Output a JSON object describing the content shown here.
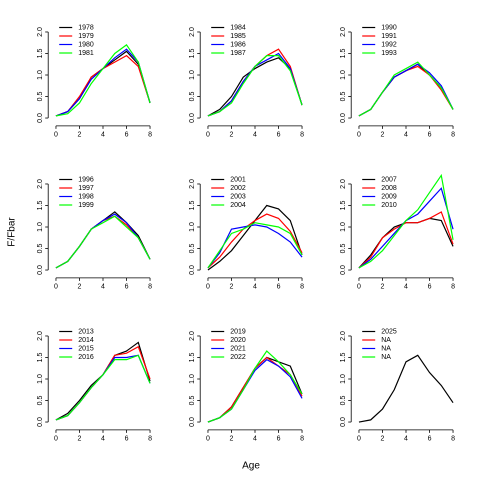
{
  "xlabel": "Age",
  "ylabel": "F/Fbar",
  "chart_data": [
    {
      "type": "line",
      "x": [
        0,
        1,
        2,
        3,
        4,
        5,
        6,
        7,
        8
      ],
      "xlim": [
        -0.32,
        8.32
      ],
      "xticks": [
        0,
        2,
        4,
        6,
        8
      ],
      "ylim": [
        -0.09,
        2.29
      ],
      "yticks": [
        {
          "value": 0,
          "label": "0.0"
        },
        0.5,
        {
          "value": 1,
          "label": "1.0"
        },
        1.5,
        {
          "value": 2,
          "label": "2.0"
        }
      ],
      "legend": "top-left",
      "series": [
        {
          "name": "1978",
          "color": "#000000",
          "values": [
            0.05,
            0.15,
            0.45,
            0.95,
            1.15,
            1.35,
            1.55,
            1.25,
            0.35
          ]
        },
        {
          "name": "1979",
          "color": "#ff0000",
          "values": [
            0.05,
            0.15,
            0.5,
            0.95,
            1.15,
            1.3,
            1.45,
            1.2,
            0.35
          ]
        },
        {
          "name": "1980",
          "color": "#0000ff",
          "values": [
            0.05,
            0.15,
            0.45,
            0.9,
            1.15,
            1.4,
            1.6,
            1.3,
            0.35
          ]
        },
        {
          "name": "1981",
          "color": "#00ff00",
          "values": [
            0.05,
            0.1,
            0.35,
            0.8,
            1.15,
            1.5,
            1.7,
            1.3,
            0.35
          ]
        }
      ]
    },
    {
      "type": "line",
      "x": [
        0,
        1,
        2,
        3,
        4,
        5,
        6,
        7,
        8
      ],
      "xlim": [
        -0.32,
        8.32
      ],
      "xticks": [
        0,
        2,
        4,
        6,
        8
      ],
      "ylim": [
        -0.09,
        2.29
      ],
      "yticks": [
        {
          "value": 0,
          "label": "0.0"
        },
        0.5,
        {
          "value": 1,
          "label": "1.0"
        },
        1.5,
        {
          "value": 2,
          "label": "2.0"
        }
      ],
      "legend": "top-left",
      "series": [
        {
          "name": "1984",
          "color": "#000000",
          "values": [
            0.05,
            0.2,
            0.5,
            0.95,
            1.15,
            1.3,
            1.4,
            1.15,
            0.3
          ]
        },
        {
          "name": "1985",
          "color": "#ff0000",
          "values": [
            0.05,
            0.15,
            0.4,
            0.85,
            1.2,
            1.45,
            1.6,
            1.2,
            0.3
          ]
        },
        {
          "name": "1986",
          "color": "#0000ff",
          "values": [
            0.05,
            0.15,
            0.4,
            0.85,
            1.2,
            1.35,
            1.5,
            1.15,
            0.3
          ]
        },
        {
          "name": "1987",
          "color": "#00ff00",
          "values": [
            0.05,
            0.15,
            0.35,
            0.8,
            1.2,
            1.45,
            1.45,
            1.1,
            0.3
          ]
        }
      ]
    },
    {
      "type": "line",
      "x": [
        0,
        1,
        2,
        3,
        4,
        5,
        6,
        7,
        8
      ],
      "xlim": [
        -0.32,
        8.32
      ],
      "xticks": [
        0,
        2,
        4,
        6,
        8
      ],
      "ylim": [
        -0.09,
        2.29
      ],
      "yticks": [
        {
          "value": 0,
          "label": "0.0"
        },
        0.5,
        {
          "value": 1,
          "label": "1.0"
        },
        1.5,
        {
          "value": 2,
          "label": "2.0"
        }
      ],
      "legend": "top-left",
      "series": [
        {
          "name": "1990",
          "color": "#000000",
          "values": [
            0.05,
            0.2,
            0.6,
            0.95,
            1.1,
            1.25,
            1.0,
            0.7,
            0.2
          ]
        },
        {
          "name": "1991",
          "color": "#ff0000",
          "values": [
            0.05,
            0.2,
            0.6,
            0.95,
            1.1,
            1.2,
            1.0,
            0.65,
            0.2
          ]
        },
        {
          "name": "1992",
          "color": "#0000ff",
          "values": [
            0.05,
            0.2,
            0.6,
            0.95,
            1.1,
            1.25,
            1.05,
            0.75,
            0.2
          ]
        },
        {
          "name": "1993",
          "color": "#00ff00",
          "values": [
            0.05,
            0.2,
            0.6,
            1.0,
            1.15,
            1.3,
            1.0,
            0.7,
            0.2
          ]
        }
      ]
    },
    {
      "type": "line",
      "x": [
        0,
        1,
        2,
        3,
        4,
        5,
        6,
        7,
        8
      ],
      "xlim": [
        -0.32,
        8.32
      ],
      "xticks": [
        0,
        2,
        4,
        6,
        8
      ],
      "ylim": [
        -0.09,
        2.29
      ],
      "yticks": [
        {
          "value": 0,
          "label": "0.0"
        },
        0.5,
        {
          "value": 1,
          "label": "1.0"
        },
        1.5,
        {
          "value": 2,
          "label": "2.0"
        }
      ],
      "legend": "top-left",
      "series": [
        {
          "name": "1996",
          "color": "#000000",
          "values": [
            0.05,
            0.2,
            0.55,
            0.95,
            1.15,
            1.35,
            1.1,
            0.8,
            0.25
          ]
        },
        {
          "name": "1997",
          "color": "#ff0000",
          "values": [
            0.05,
            0.2,
            0.55,
            0.95,
            1.15,
            1.25,
            1.05,
            0.75,
            0.25
          ]
        },
        {
          "name": "1998",
          "color": "#0000ff",
          "values": [
            0.05,
            0.2,
            0.55,
            0.95,
            1.15,
            1.3,
            1.1,
            0.75,
            0.25
          ]
        },
        {
          "name": "1999",
          "color": "#00ff00",
          "values": [
            0.05,
            0.2,
            0.55,
            0.95,
            1.1,
            1.25,
            1.0,
            0.75,
            0.25
          ]
        }
      ]
    },
    {
      "type": "line",
      "x": [
        0,
        1,
        2,
        3,
        4,
        5,
        6,
        7,
        8
      ],
      "xlim": [
        -0.32,
        8.32
      ],
      "xticks": [
        0,
        2,
        4,
        6,
        8
      ],
      "ylim": [
        -0.09,
        2.29
      ],
      "yticks": [
        {
          "value": 0,
          "label": "0.0"
        },
        0.5,
        {
          "value": 1,
          "label": "1.0"
        },
        1.5,
        {
          "value": 2,
          "label": "2.0"
        }
      ],
      "legend": "top-left",
      "series": [
        {
          "name": "2001",
          "color": "#000000",
          "values": [
            0.0,
            0.2,
            0.45,
            0.8,
            1.15,
            1.5,
            1.42,
            1.15,
            0.35
          ]
        },
        {
          "name": "2002",
          "color": "#ff0000",
          "values": [
            0.05,
            0.3,
            0.65,
            0.95,
            1.15,
            1.3,
            1.2,
            0.9,
            0.4
          ]
        },
        {
          "name": "2003",
          "color": "#0000ff",
          "values": [
            0.05,
            0.4,
            0.95,
            1.0,
            1.05,
            1.0,
            0.85,
            0.65,
            0.3
          ]
        },
        {
          "name": "2004",
          "color": "#00ff00",
          "values": [
            0.05,
            0.45,
            0.85,
            0.95,
            1.1,
            1.05,
            1.0,
            0.85,
            0.35
          ]
        }
      ]
    },
    {
      "type": "line",
      "x": [
        0,
        1,
        2,
        3,
        4,
        5,
        6,
        7,
        8
      ],
      "xlim": [
        -0.32,
        8.32
      ],
      "xticks": [
        0,
        2,
        4,
        6,
        8
      ],
      "ylim": [
        -0.09,
        2.29
      ],
      "yticks": [
        {
          "value": 0,
          "label": "0.0"
        },
        0.5,
        {
          "value": 1,
          "label": "1.0"
        },
        1.5,
        {
          "value": 2,
          "label": "2.0"
        }
      ],
      "legend": "top-left",
      "series": [
        {
          "name": "2007",
          "color": "#000000",
          "values": [
            0.05,
            0.35,
            0.75,
            1.0,
            1.1,
            1.1,
            1.2,
            1.15,
            0.55
          ]
        },
        {
          "name": "2008",
          "color": "#ff0000",
          "values": [
            0.05,
            0.3,
            0.75,
            0.95,
            1.1,
            1.1,
            1.2,
            1.35,
            0.6
          ]
        },
        {
          "name": "2009",
          "color": "#0000ff",
          "values": [
            0.05,
            0.25,
            0.55,
            0.85,
            1.15,
            1.3,
            1.6,
            1.9,
            0.95
          ]
        },
        {
          "name": "2010",
          "color": "#00ff00",
          "values": [
            0.05,
            0.2,
            0.45,
            0.8,
            1.15,
            1.4,
            1.8,
            2.2,
            0.7
          ]
        }
      ]
    },
    {
      "type": "line",
      "x": [
        0,
        1,
        2,
        3,
        4,
        5,
        6,
        7,
        8
      ],
      "xlim": [
        -0.32,
        8.32
      ],
      "xticks": [
        0,
        2,
        4,
        6,
        8
      ],
      "ylim": [
        -0.09,
        2.29
      ],
      "yticks": [
        {
          "value": 0,
          "label": "0.0"
        },
        0.5,
        {
          "value": 1,
          "label": "1.0"
        },
        1.5,
        {
          "value": 2,
          "label": "2.0"
        }
      ],
      "legend": "top-left",
      "series": [
        {
          "name": "2013",
          "color": "#000000",
          "values": [
            0.05,
            0.2,
            0.5,
            0.85,
            1.1,
            1.55,
            1.65,
            1.85,
            0.95
          ]
        },
        {
          "name": "2014",
          "color": "#ff0000",
          "values": [
            0.05,
            0.15,
            0.45,
            0.8,
            1.1,
            1.55,
            1.6,
            1.75,
            1.0
          ]
        },
        {
          "name": "2015",
          "color": "#0000ff",
          "values": [
            0.05,
            0.15,
            0.45,
            0.8,
            1.1,
            1.5,
            1.5,
            1.55,
            0.9
          ]
        },
        {
          "name": "2016",
          "color": "#00ff00",
          "values": [
            0.05,
            0.15,
            0.45,
            0.8,
            1.1,
            1.45,
            1.45,
            1.55,
            0.9
          ]
        }
      ]
    },
    {
      "type": "line",
      "x": [
        0,
        1,
        2,
        3,
        4,
        5,
        6,
        7,
        8
      ],
      "xlim": [
        -0.32,
        8.32
      ],
      "xticks": [
        0,
        2,
        4,
        6,
        8
      ],
      "ylim": [
        -0.09,
        2.29
      ],
      "yticks": [
        {
          "value": 0,
          "label": "0.0"
        },
        0.5,
        {
          "value": 1,
          "label": "1.0"
        },
        1.5,
        {
          "value": 2,
          "label": "2.0"
        }
      ],
      "legend": "top-left",
      "series": [
        {
          "name": "2019",
          "color": "#000000",
          "values": [
            0.0,
            0.1,
            0.35,
            0.8,
            1.25,
            1.5,
            1.4,
            1.3,
            0.65
          ]
        },
        {
          "name": "2020",
          "color": "#ff0000",
          "values": [
            0.0,
            0.1,
            0.35,
            0.8,
            1.25,
            1.5,
            1.3,
            1.1,
            0.6
          ]
        },
        {
          "name": "2021",
          "color": "#0000ff",
          "values": [
            0.0,
            0.1,
            0.3,
            0.75,
            1.2,
            1.45,
            1.3,
            1.05,
            0.55
          ]
        },
        {
          "name": "2022",
          "color": "#00ff00",
          "values": [
            0.0,
            0.1,
            0.3,
            0.75,
            1.25,
            1.65,
            1.4,
            1.1,
            0.65
          ]
        }
      ]
    },
    {
      "type": "line",
      "x": [
        0,
        1,
        2,
        3,
        4,
        5,
        6,
        7,
        8
      ],
      "xlim": [
        -0.32,
        8.32
      ],
      "xticks": [
        0,
        2,
        4,
        6,
        8
      ],
      "ylim": [
        -0.09,
        2.29
      ],
      "yticks": [
        {
          "value": 0,
          "label": "0.0"
        },
        0.5,
        {
          "value": 1,
          "label": "1.0"
        },
        1.5,
        {
          "value": 2,
          "label": "2.0"
        }
      ],
      "legend": "top-left",
      "series": [
        {
          "name": "2025",
          "color": "#000000",
          "values": [
            0.0,
            0.05,
            0.3,
            0.75,
            1.4,
            1.55,
            1.15,
            0.85,
            0.45
          ]
        },
        {
          "name": "NA",
          "color": "#ff0000",
          "values": [
            null,
            null,
            null,
            null,
            null,
            null,
            null,
            null,
            null
          ]
        },
        {
          "name": "NA",
          "color": "#0000ff",
          "values": [
            null,
            null,
            null,
            null,
            null,
            null,
            null,
            null,
            null
          ]
        },
        {
          "name": "NA",
          "color": "#00ff00",
          "values": [
            null,
            null,
            null,
            null,
            null,
            null,
            null,
            null,
            null
          ]
        }
      ]
    }
  ]
}
